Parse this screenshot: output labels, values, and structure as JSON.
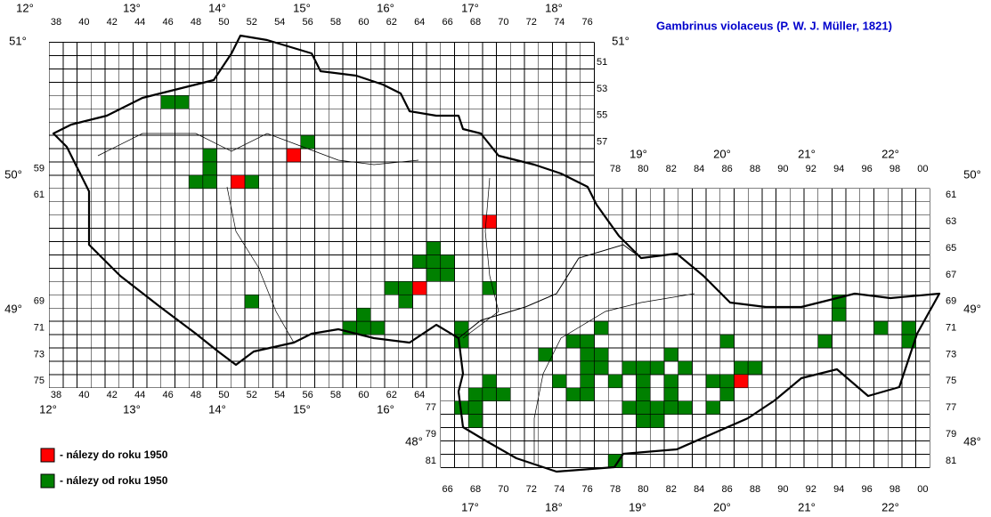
{
  "title": "Gambrinus violaceus (P. W. J. Müller, 1821)",
  "legend": [
    {
      "label": "- nálezy do roku 1950",
      "color": "#ff0000"
    },
    {
      "label": "- nálezy od roku 1950",
      "color": "#008000"
    }
  ],
  "column_labels_top_west": [
    "38",
    "40",
    "42",
    "44",
    "46",
    "48",
    "50",
    "52",
    "54",
    "56",
    "58",
    "60",
    "62",
    "64",
    "66",
    "68",
    "70",
    "72",
    "74",
    "76"
  ],
  "column_labels_bottom_west": [
    "38",
    "40",
    "42",
    "44",
    "46",
    "48",
    "50",
    "52",
    "54",
    "56",
    "58",
    "60",
    "62",
    "64"
  ],
  "column_labels_top_east": [
    "78",
    "80",
    "82",
    "84",
    "86",
    "88",
    "90",
    "92",
    "94",
    "96",
    "98",
    "00"
  ],
  "column_labels_bottom_east": [
    "66",
    "68",
    "70",
    "72",
    "74",
    "76",
    "78",
    "80",
    "82",
    "84",
    "86",
    "88",
    "90",
    "92",
    "94",
    "96",
    "98",
    "00"
  ],
  "row_labels_right_west": [
    "51",
    "53",
    "55",
    "57"
  ],
  "row_labels_left_west": [
    "59",
    "61",
    "69",
    "71",
    "73",
    "75"
  ],
  "row_labels_left_east": [
    "77",
    "79",
    "81"
  ],
  "row_labels_right_east": [
    "61",
    "63",
    "65",
    "67",
    "69",
    "71",
    "73",
    "75",
    "77",
    "79",
    "81"
  ],
  "longitude_top_west": [
    "12°",
    "13°",
    "14°",
    "15°",
    "16°",
    "17°",
    "18°"
  ],
  "longitude_top_east": [
    "19°",
    "20°",
    "21°",
    "22°"
  ],
  "longitude_bottom_west": [
    "12°",
    "13°",
    "14°",
    "15°",
    "16°"
  ],
  "longitude_bottom_east": [
    "17°",
    "18°",
    "19°",
    "20°",
    "21°",
    "22°"
  ],
  "latitude_left": [
    "51°",
    "50°",
    "49°",
    "48°"
  ],
  "latitude_right": [
    "51°",
    "50°",
    "49°",
    "48°"
  ],
  "records_before_1950": [
    [
      55,
      58
    ],
    [
      51,
      60
    ],
    [
      69,
      63
    ],
    [
      64,
      68
    ],
    [
      87,
      75
    ]
  ],
  "records_since_1950": [
    [
      46,
      54
    ],
    [
      47,
      54
    ],
    [
      56,
      57
    ],
    [
      49,
      58
    ],
    [
      49,
      59
    ],
    [
      48,
      60
    ],
    [
      49,
      60
    ],
    [
      52,
      60
    ],
    [
      65,
      65
    ],
    [
      64,
      66
    ],
    [
      65,
      66
    ],
    [
      66,
      66
    ],
    [
      65,
      67
    ],
    [
      66,
      67
    ],
    [
      62,
      68
    ],
    [
      63,
      68
    ],
    [
      69,
      68
    ],
    [
      52,
      69
    ],
    [
      63,
      69
    ],
    [
      94,
      69
    ],
    [
      60,
      70
    ],
    [
      94,
      70
    ],
    [
      59,
      71
    ],
    [
      60,
      71
    ],
    [
      61,
      71
    ],
    [
      67,
      71
    ],
    [
      77,
      71
    ],
    [
      97,
      71
    ],
    [
      99,
      71
    ],
    [
      67,
      72
    ],
    [
      75,
      72
    ],
    [
      76,
      72
    ],
    [
      86,
      72
    ],
    [
      93,
      72
    ],
    [
      99,
      72
    ],
    [
      73,
      73
    ],
    [
      76,
      73
    ],
    [
      77,
      73
    ],
    [
      82,
      73
    ],
    [
      76,
      74
    ],
    [
      77,
      74
    ],
    [
      79,
      74
    ],
    [
      80,
      74
    ],
    [
      81,
      74
    ],
    [
      83,
      74
    ],
    [
      87,
      74
    ],
    [
      88,
      74
    ],
    [
      69,
      75
    ],
    [
      74,
      75
    ],
    [
      76,
      75
    ],
    [
      78,
      75
    ],
    [
      80,
      75
    ],
    [
      82,
      75
    ],
    [
      85,
      75
    ],
    [
      86,
      75
    ],
    [
      68,
      76
    ],
    [
      69,
      76
    ],
    [
      70,
      76
    ],
    [
      75,
      76
    ],
    [
      76,
      76
    ],
    [
      80,
      76
    ],
    [
      82,
      76
    ],
    [
      86,
      76
    ],
    [
      67,
      77
    ],
    [
      68,
      77
    ],
    [
      79,
      77
    ],
    [
      80,
      77
    ],
    [
      81,
      77
    ],
    [
      82,
      77
    ],
    [
      83,
      77
    ],
    [
      85,
      77
    ],
    [
      68,
      78
    ],
    [
      80,
      78
    ],
    [
      81,
      78
    ],
    [
      78,
      81
    ]
  ]
}
